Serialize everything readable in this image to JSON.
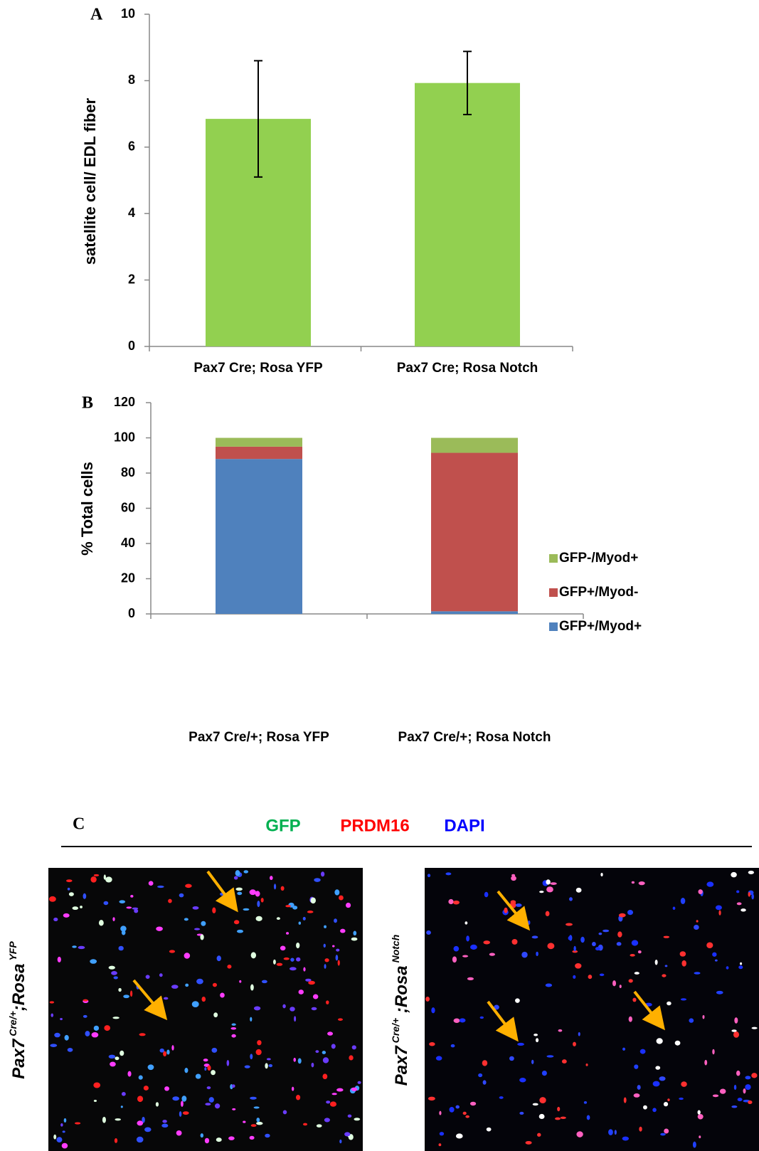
{
  "chart_data": [
    {
      "type": "bar",
      "panel_label": "A",
      "ylabel": "satellite cell/ EDL fiber",
      "categories": [
        "Pax7 Cre; Rosa YFP",
        "Pax7 Cre; Rosa Notch"
      ],
      "values": [
        6.85,
        7.93
      ],
      "errors": [
        1.75,
        0.95
      ],
      "color": "#92d050",
      "ylim": [
        0,
        10
      ],
      "yticks": [
        0,
        2,
        4,
        6,
        8,
        10
      ],
      "grid": false
    },
    {
      "type": "stacked_bar",
      "panel_label": "B",
      "ylabel": "% Total cells",
      "categories": [
        "Pax7 Cre/+; Rosa YFP",
        "Pax7 Cre/+; Rosa Notch"
      ],
      "series": [
        {
          "name": "GFP+/Myod+",
          "color": "#4f81bd",
          "values": [
            88,
            1.5
          ]
        },
        {
          "name": "GFP+/Myod-",
          "color": "#c0504d",
          "values": [
            7,
            90
          ]
        },
        {
          "name": "GFP-/Myod+",
          "color": "#9bbb59",
          "values": [
            5,
            8.5
          ]
        }
      ],
      "ylim": [
        0,
        120
      ],
      "yticks": [
        0,
        20,
        40,
        60,
        80,
        100,
        120
      ],
      "grid": false,
      "legend": "right"
    }
  ],
  "panel_c": {
    "label": "C",
    "stains": [
      {
        "text": "GFP",
        "color": "#00b050"
      },
      {
        "text": "PRDM16",
        "color": "#ff0000"
      },
      {
        "text": "DAPI",
        "color": "#0000ff"
      }
    ],
    "images": [
      {
        "gene": "Pax7",
        "allele": "Cre/+",
        "reporter": ";Rosa",
        "reporter_allele": "YFP"
      },
      {
        "gene": "Pax7",
        "allele": "Cre/+",
        "reporter": " ;Rosa",
        "reporter_allele": "Notch"
      }
    ]
  }
}
